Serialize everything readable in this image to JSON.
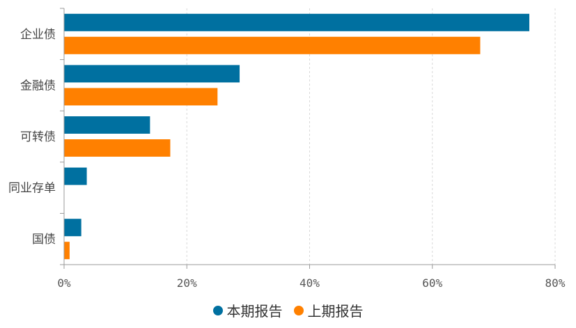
{
  "chart_data": {
    "type": "bar",
    "orientation": "horizontal",
    "categories": [
      "企业债",
      "金融债",
      "可转债",
      "同业存单",
      "国债"
    ],
    "series": [
      {
        "name": "本期报告",
        "color": "#0070a0",
        "values": [
          75.8,
          28.6,
          14.0,
          3.7,
          2.8
        ]
      },
      {
        "name": "上期报告",
        "color": "#ff8000",
        "values": [
          67.8,
          25.0,
          17.3,
          0,
          0.9
        ]
      }
    ],
    "xlim": [
      0,
      80
    ],
    "xticks": [
      "0%",
      "20%",
      "40%",
      "60%",
      "80%"
    ],
    "grid": true,
    "legend_position": "bottom"
  }
}
